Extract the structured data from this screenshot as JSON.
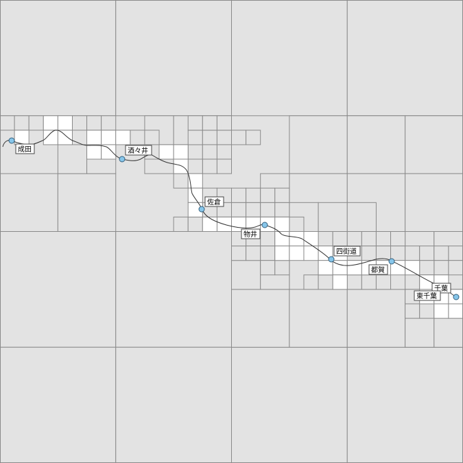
{
  "colors": {
    "empty_tile": "#e3e3e3",
    "loaded_tile": "#ffffff",
    "grid_line": "#8a8a8a",
    "route_line": "#333333",
    "station_fill": "#87c6ea",
    "station_stroke": "#35607e",
    "label_bg": "#ffffff",
    "label_border": "#444444"
  },
  "map": {
    "view": "quadtree tile grid with railway route",
    "stations": [
      {
        "name": "成田"
      },
      {
        "name": "酒々井"
      },
      {
        "name": "佐倉"
      },
      {
        "name": "物井"
      },
      {
        "name": "四街道"
      },
      {
        "name": "都賀"
      },
      {
        "name": "千葉"
      },
      {
        "name": "東千葉"
      }
    ]
  }
}
